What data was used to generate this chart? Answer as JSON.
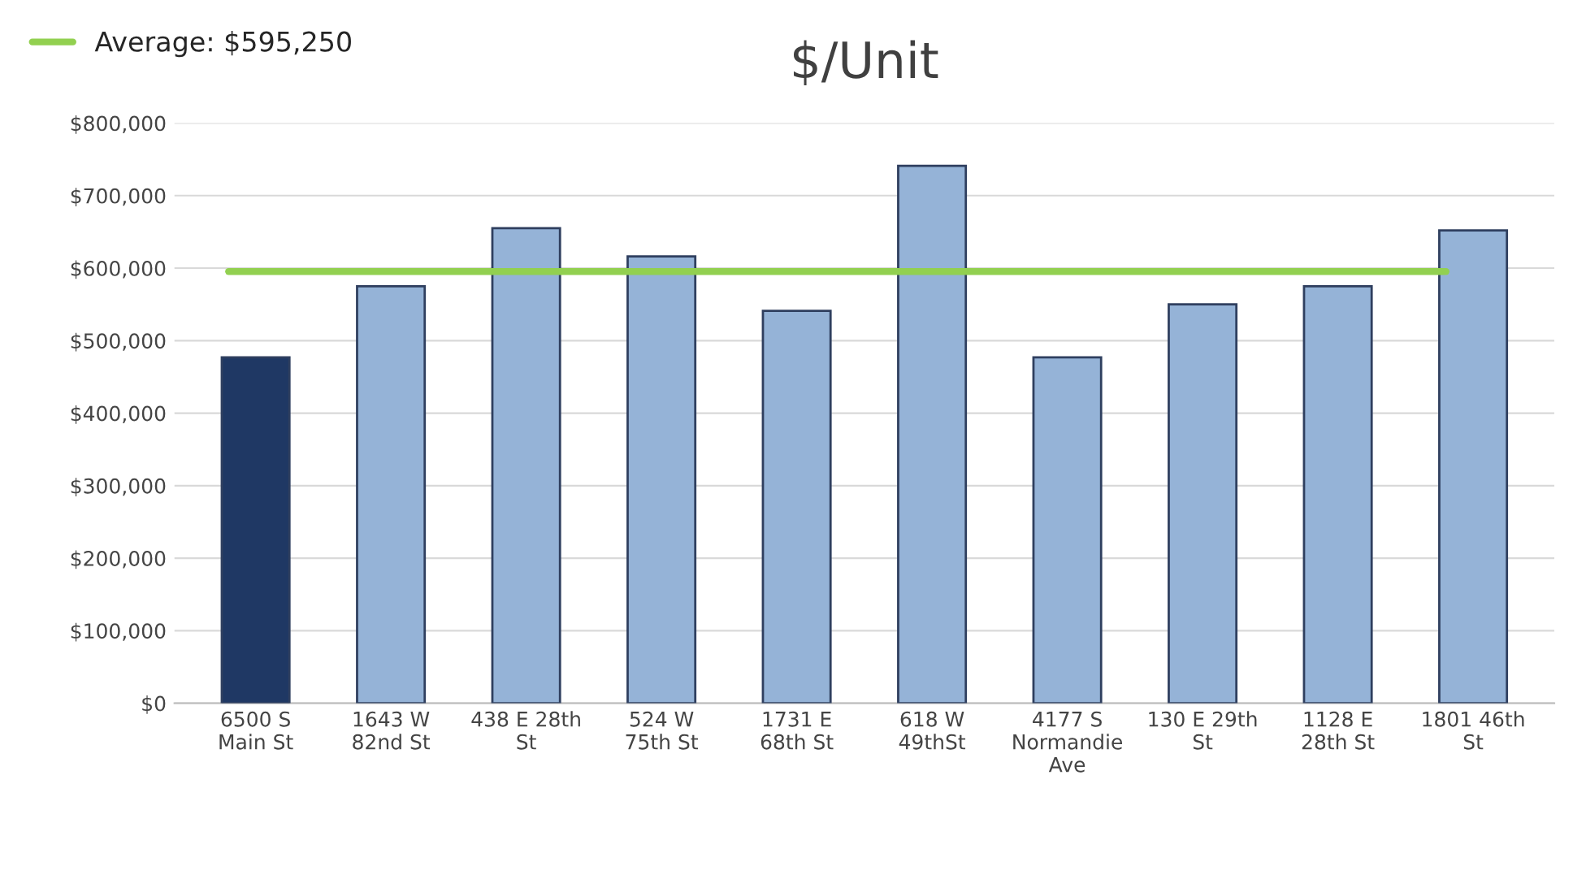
{
  "chart_data": {
    "type": "bar",
    "title": "$/Unit",
    "categories": [
      "6500 S\nMain St",
      "1643 W\n82nd St",
      "438 E 28th\nSt",
      "524 W\n75th St",
      "1731 E\n68th St",
      "618 W\n49thSt",
      "4177 S\nNormandie\nAve",
      "130 E 29th\nSt",
      "1128 E\n28th St",
      "1801 46th\nSt"
    ],
    "values": [
      477000,
      575000,
      655000,
      616000,
      541000,
      741000,
      477000,
      550000,
      575000,
      652000
    ],
    "colors": [
      "#1f3864",
      "#95b3d7",
      "#95b3d7",
      "#95b3d7",
      "#95b3d7",
      "#95b3d7",
      "#95b3d7",
      "#95b3d7",
      "#95b3d7",
      "#95b3d7"
    ],
    "ylim": [
      0,
      800000
    ],
    "yticks": [
      {
        "value": 0,
        "label": "$0"
      },
      {
        "value": 100000,
        "label": "$100,000"
      },
      {
        "value": 200000,
        "label": "$200,000"
      },
      {
        "value": 300000,
        "label": "$300,000"
      },
      {
        "value": 400000,
        "label": "$400,000"
      },
      {
        "value": 500000,
        "label": "$500,000"
      },
      {
        "value": 600000,
        "label": "$600,000"
      },
      {
        "value": 700000,
        "label": "$700,000"
      },
      {
        "value": 800000,
        "label": "$800,000"
      }
    ],
    "ref_lines": [
      {
        "axis": "y",
        "value": 595250,
        "label": "Average: $595,250",
        "color": "#92d050"
      }
    ],
    "grid": "y"
  }
}
